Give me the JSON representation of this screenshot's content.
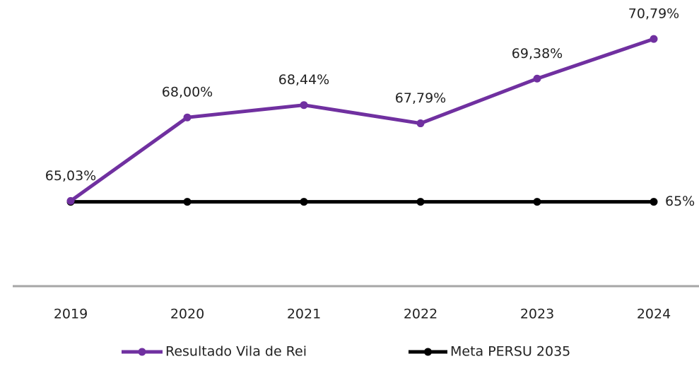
{
  "chart_data": {
    "type": "line",
    "categories": [
      "2019",
      "2020",
      "2021",
      "2022",
      "2023",
      "2024"
    ],
    "series": [
      {
        "name": "Resultado Vila de Rei",
        "color": "#7030a0",
        "values": [
          65.03,
          68.0,
          68.44,
          67.79,
          69.38,
          70.79
        ],
        "value_labels": [
          "65,03%",
          "68,00%",
          "68,44%",
          "67,79%",
          "69,38%",
          "70,79%"
        ]
      },
      {
        "name": "Meta PERSU 2035",
        "color": "#000000",
        "values": [
          65,
          65,
          65,
          65,
          65,
          65
        ],
        "value_labels": [
          null,
          null,
          null,
          null,
          null,
          "65%"
        ]
      }
    ],
    "ylim": [
      62,
      72
    ],
    "legend": "bottom"
  }
}
